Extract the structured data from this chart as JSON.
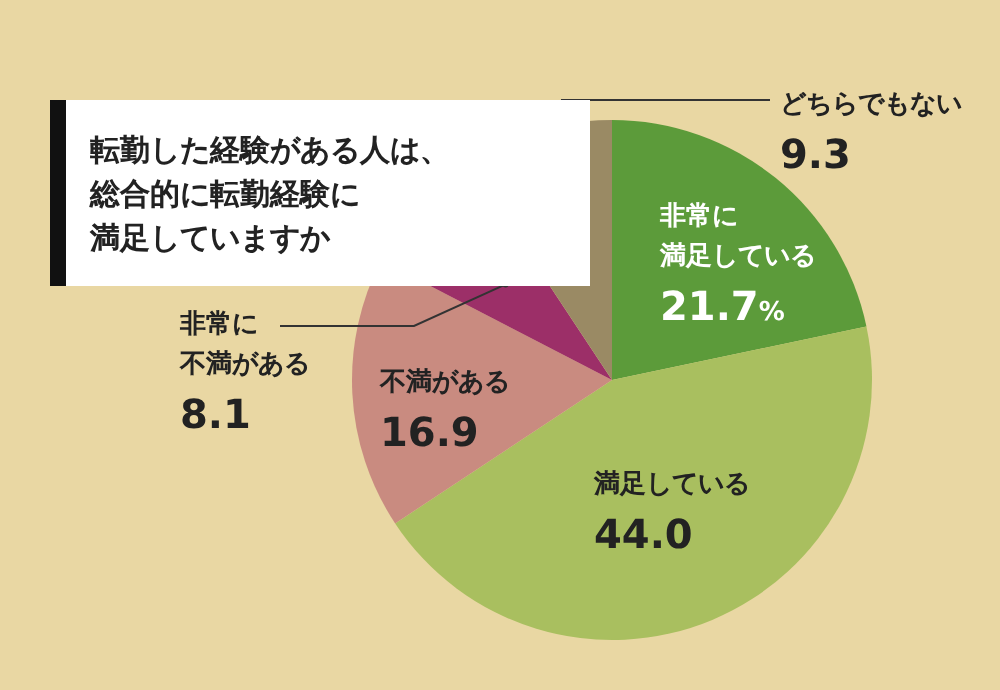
{
  "chart_data": {
    "type": "pie",
    "title": "転勤した経験がある人は、総合的に転勤経験に満足していますか",
    "categories": [
      "非常に満足している",
      "満足している",
      "不満がある",
      "非常に不満がある",
      "どちらでもない"
    ],
    "values": [
      21.7,
      44.0,
      16.9,
      8.1,
      9.3
    ],
    "value_labels": [
      "21.7%",
      "44.0",
      "16.9",
      "8.1",
      "9.3"
    ],
    "colors": [
      "#5c9b3a",
      "#a9bf5f",
      "#c98b80",
      "#9c2f68",
      "#9a8a64"
    ]
  }
}
